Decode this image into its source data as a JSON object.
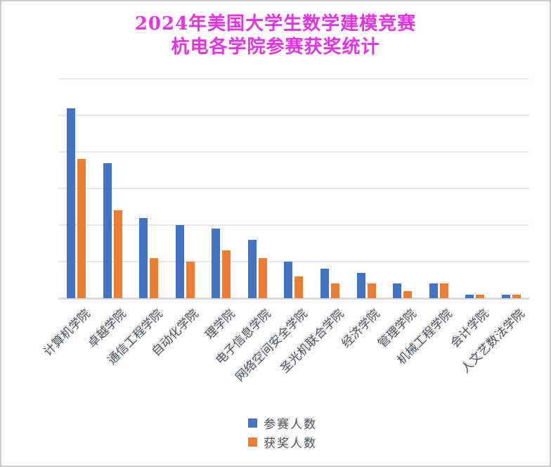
{
  "window": {
    "background": "#ffffff",
    "border_color": "#cccccc"
  },
  "title": {
    "line1": "2024年美国大学生数学建模竞赛",
    "line2": "杭电各学院参赛获奖统计",
    "color": "#e632e6"
  },
  "chart_data": {
    "type": "bar",
    "title": "2024年美国大学生数学建模竞赛 杭电各学院参赛获奖统计",
    "categories": [
      "计算机学院",
      "卓越学院",
      "通信工程学院",
      "自动化学院",
      "理学院",
      "电子信息学院",
      "网络空间安全学院",
      "圣光机联合学院",
      "经济学院",
      "管理学院",
      "机械工程学院",
      "会计学院",
      "人文艺数法学院"
    ],
    "series": [
      {
        "name": "参赛人数",
        "color": "#4472c4",
        "values": [
          104,
          74,
          44,
          40,
          38,
          32,
          20,
          16,
          14,
          8,
          8,
          2,
          2
        ]
      },
      {
        "name": "获奖人数",
        "color": "#ed7d31",
        "values": [
          76,
          48,
          22,
          20,
          26,
          22,
          12,
          8,
          8,
          4,
          8,
          2,
          2
        ]
      }
    ],
    "xlabel": "",
    "ylabel": "",
    "ylim": [
      0,
      120
    ],
    "y_step": 20,
    "y_axis_labels_visible": false,
    "grid": true,
    "gridline_color": "#e7e7e7",
    "x_label_rotation": -45,
    "legend_position": "bottom"
  }
}
